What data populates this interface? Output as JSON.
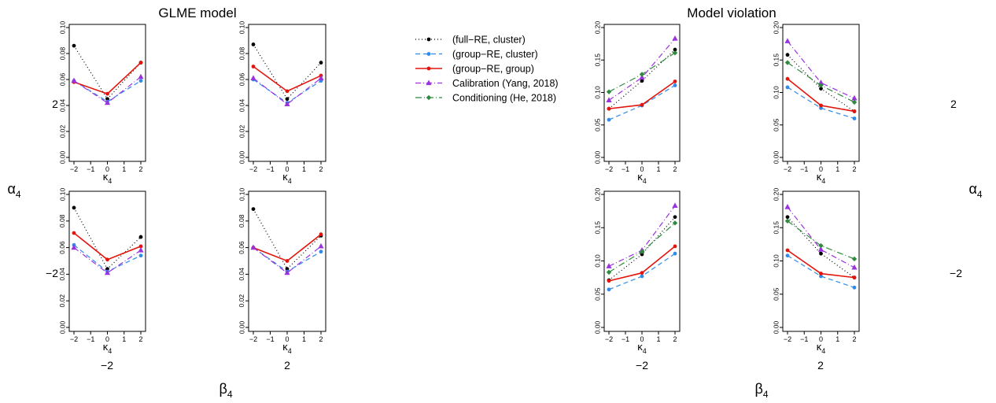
{
  "panel_titles": [
    "GLME model",
    "Model violation"
  ],
  "row_labels": [
    "2",
    "−2"
  ],
  "col_labels": [
    "−2",
    "2",
    "−2",
    "2"
  ],
  "row_factor_label": "α",
  "row_factor_sub": "4",
  "col_factor_label": "β",
  "col_factor_sub": "4",
  "x_axis_label": "κ",
  "x_axis_sub": "4",
  "legend": [
    {
      "label": "(full−RE, cluster)",
      "color": "#000000",
      "dash": "1,3",
      "marker": "circle"
    },
    {
      "label": "(group−RE, cluster)",
      "color": "#2E8BEA",
      "dash": "6,4",
      "marker": "circle"
    },
    {
      "label": "(group−RE, group)",
      "color": "#E3140C",
      "dash": "",
      "marker": "circle"
    },
    {
      "label": "Calibration (Yang, 2018)",
      "color": "#9A32E0",
      "dash": "7,3,1,3",
      "marker": "triangle"
    },
    {
      "label": "Conditioning (He, 2018)",
      "color": "#2E8B3E",
      "dash": "8,3,1,3",
      "marker": "diamond"
    }
  ],
  "chart_data": [
    {
      "type": "line",
      "panel": "GLME model",
      "alpha4": "2",
      "beta4": "−2",
      "x": [
        -2,
        0,
        2
      ],
      "xlabel": "κ4",
      "xticks": [
        "−2",
        "−1",
        "0",
        "1",
        "2"
      ],
      "ylim": [
        0,
        0.1
      ],
      "yticks": [
        "0.00",
        "0.02",
        "0.04",
        "0.06",
        "0.08",
        "0.10"
      ],
      "series": [
        {
          "name": "(full−RE, cluster)",
          "values": [
            0.086,
            0.045,
            0.073
          ]
        },
        {
          "name": "(group−RE, cluster)",
          "values": [
            0.059,
            0.043,
            0.059
          ]
        },
        {
          "name": "(group−RE, group)",
          "values": [
            0.058,
            0.049,
            0.073
          ]
        },
        {
          "name": "Calibration (Yang, 2018)",
          "values": [
            0.059,
            0.042,
            0.062
          ]
        }
      ]
    },
    {
      "type": "line",
      "panel": "GLME model",
      "alpha4": "2",
      "beta4": "2",
      "x": [
        -2,
        0,
        2
      ],
      "xlabel": "κ4",
      "xticks": [
        "−2",
        "−1",
        "0",
        "1",
        "2"
      ],
      "ylim": [
        0,
        0.1
      ],
      "yticks": [
        "0.00",
        "0.02",
        "0.04",
        "0.06",
        "0.08",
        "0.10"
      ],
      "series": [
        {
          "name": "(full−RE, cluster)",
          "values": [
            0.087,
            0.045,
            0.073
          ]
        },
        {
          "name": "(group−RE, cluster)",
          "values": [
            0.06,
            0.042,
            0.059
          ]
        },
        {
          "name": "(group−RE, group)",
          "values": [
            0.07,
            0.051,
            0.063
          ]
        },
        {
          "name": "Calibration (Yang, 2018)",
          "values": [
            0.061,
            0.041,
            0.061
          ]
        }
      ]
    },
    {
      "type": "line",
      "panel": "GLME model",
      "alpha4": "−2",
      "beta4": "−2",
      "x": [
        -2,
        0,
        2
      ],
      "xlabel": "κ4",
      "xticks": [
        "−2",
        "−1",
        "0",
        "1",
        "2"
      ],
      "ylim": [
        0,
        0.1
      ],
      "yticks": [
        "0.00",
        "0.02",
        "0.04",
        "0.06",
        "0.08",
        "0.10"
      ],
      "series": [
        {
          "name": "(full−RE, cluster)",
          "values": [
            0.09,
            0.044,
            0.068
          ]
        },
        {
          "name": "(group−RE, cluster)",
          "values": [
            0.062,
            0.042,
            0.054
          ]
        },
        {
          "name": "(group−RE, group)",
          "values": [
            0.071,
            0.051,
            0.061
          ]
        },
        {
          "name": "Calibration (Yang, 2018)",
          "values": [
            0.06,
            0.041,
            0.058
          ]
        }
      ]
    },
    {
      "type": "line",
      "panel": "GLME model",
      "alpha4": "−2",
      "beta4": "2",
      "x": [
        -2,
        0,
        2
      ],
      "xlabel": "κ4",
      "xticks": [
        "−2",
        "−1",
        "0",
        "1",
        "2"
      ],
      "ylim": [
        0,
        0.1
      ],
      "yticks": [
        "0.00",
        "0.02",
        "0.04",
        "0.06",
        "0.08",
        "0.10"
      ],
      "series": [
        {
          "name": "(full−RE, cluster)",
          "values": [
            0.089,
            0.044,
            0.069
          ]
        },
        {
          "name": "(group−RE, cluster)",
          "values": [
            0.06,
            0.042,
            0.057
          ]
        },
        {
          "name": "(group−RE, group)",
          "values": [
            0.06,
            0.05,
            0.07
          ]
        },
        {
          "name": "Calibration (Yang, 2018)",
          "values": [
            0.06,
            0.041,
            0.061
          ]
        }
      ]
    },
    {
      "type": "line",
      "panel": "Model violation",
      "alpha4": "2",
      "beta4": "−2",
      "x": [
        -2,
        0,
        2
      ],
      "xlabel": "κ4",
      "xticks": [
        "−2",
        "−1",
        "0",
        "1",
        "2"
      ],
      "ylim": [
        0,
        0.2
      ],
      "yticks": [
        "0.00",
        "0.05",
        "0.10",
        "0.15",
        "0.20"
      ],
      "series": [
        {
          "name": "(full−RE, cluster)",
          "values": [
            0.075,
            0.118,
            0.166
          ]
        },
        {
          "name": "(group−RE, cluster)",
          "values": [
            0.058,
            0.08,
            0.111
          ]
        },
        {
          "name": "(group−RE, group)",
          "values": [
            0.075,
            0.081,
            0.117
          ]
        },
        {
          "name": "Calibration (Yang, 2018)",
          "values": [
            0.088,
            0.123,
            0.183
          ]
        },
        {
          "name": "Conditioning (He, 2018)",
          "values": [
            0.101,
            0.128,
            0.161
          ]
        }
      ]
    },
    {
      "type": "line",
      "panel": "Model violation",
      "alpha4": "2",
      "beta4": "2",
      "x": [
        -2,
        0,
        2
      ],
      "xlabel": "κ4",
      "xticks": [
        "−2",
        "−1",
        "0",
        "1",
        "2"
      ],
      "ylim": [
        0,
        0.2
      ],
      "yticks": [
        "0.00",
        "0.05",
        "0.10",
        "0.15",
        "0.20"
      ],
      "series": [
        {
          "name": "(full−RE, cluster)",
          "values": [
            0.158,
            0.106,
            0.071
          ]
        },
        {
          "name": "(group−RE, cluster)",
          "values": [
            0.108,
            0.076,
            0.06
          ]
        },
        {
          "name": "(group−RE, group)",
          "values": [
            0.121,
            0.08,
            0.071
          ]
        },
        {
          "name": "Calibration (Yang, 2018)",
          "values": [
            0.179,
            0.115,
            0.091
          ]
        },
        {
          "name": "Conditioning (He, 2018)",
          "values": [
            0.146,
            0.111,
            0.085
          ]
        }
      ]
    },
    {
      "type": "line",
      "panel": "Model violation",
      "alpha4": "−2",
      "beta4": "−2",
      "x": [
        -2,
        0,
        2
      ],
      "xlabel": "κ4",
      "xticks": [
        "−2",
        "−1",
        "0",
        "1",
        "2"
      ],
      "ylim": [
        0,
        0.2
      ],
      "yticks": [
        "0.00",
        "0.05",
        "0.10",
        "0.15",
        "0.20"
      ],
      "series": [
        {
          "name": "(full−RE, cluster)",
          "values": [
            0.071,
            0.11,
            0.166
          ]
        },
        {
          "name": "(group−RE, cluster)",
          "values": [
            0.057,
            0.077,
            0.111
          ]
        },
        {
          "name": "(group−RE, group)",
          "values": [
            0.07,
            0.082,
            0.122
          ]
        },
        {
          "name": "Calibration (Yang, 2018)",
          "values": [
            0.092,
            0.116,
            0.183
          ]
        },
        {
          "name": "Conditioning (He, 2018)",
          "values": [
            0.083,
            0.114,
            0.157
          ]
        }
      ]
    },
    {
      "type": "line",
      "panel": "Model violation",
      "alpha4": "−2",
      "beta4": "2",
      "x": [
        -2,
        0,
        2
      ],
      "xlabel": "κ4",
      "xticks": [
        "−2",
        "−1",
        "0",
        "1",
        "2"
      ],
      "ylim": [
        0,
        0.2
      ],
      "yticks": [
        "0.00",
        "0.05",
        "0.10",
        "0.15",
        "0.20"
      ],
      "series": [
        {
          "name": "(full−RE, cluster)",
          "values": [
            0.166,
            0.111,
            0.075
          ]
        },
        {
          "name": "(group−RE, cluster)",
          "values": [
            0.108,
            0.077,
            0.06
          ]
        },
        {
          "name": "(group−RE, group)",
          "values": [
            0.116,
            0.081,
            0.075
          ]
        },
        {
          "name": "Calibration (Yang, 2018)",
          "values": [
            0.181,
            0.117,
            0.09
          ]
        },
        {
          "name": "Conditioning (He, 2018)",
          "values": [
            0.16,
            0.123,
            0.103
          ]
        }
      ]
    }
  ]
}
